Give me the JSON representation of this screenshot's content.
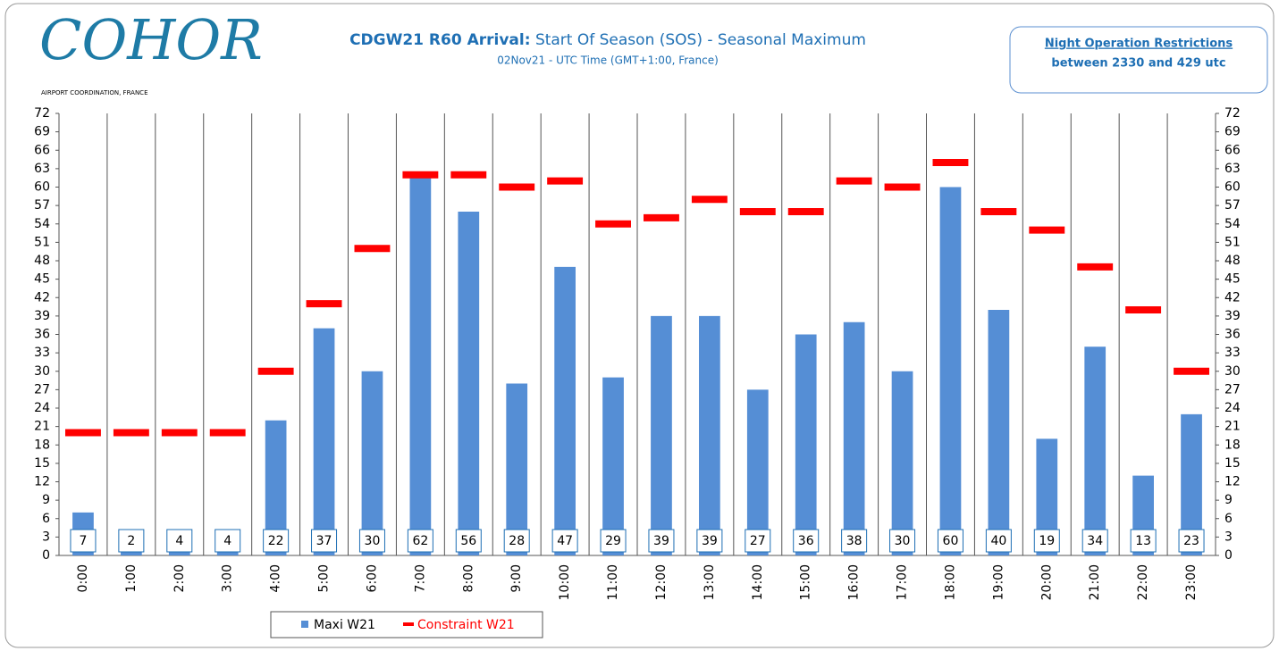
{
  "header": {
    "logo": "COHOR",
    "logo_subtitle": "AIRPORT COORDINATION, FRANCE",
    "note_title": "Night Operation Restrictions",
    "note_text": "between 2330 and 429 utc"
  },
  "chart_data": {
    "type": "bar",
    "title": "CDGW21 R60 Arrival:",
    "title_detail": "Start Of Season (SOS) - Seasonal Maximum",
    "subtitle": "02Nov21 - UTC Time (GMT+1:00, France)",
    "categories": [
      "0:00",
      "1:00",
      "2:00",
      "3:00",
      "4:00",
      "5:00",
      "6:00",
      "7:00",
      "8:00",
      "9:00",
      "10:00",
      "11:00",
      "12:00",
      "13:00",
      "14:00",
      "15:00",
      "16:00",
      "17:00",
      "18:00",
      "19:00",
      "20:00",
      "21:00",
      "22:00",
      "23:00"
    ],
    "series": [
      {
        "name": "Maxi W21",
        "color": "#558ed5",
        "style": "bar",
        "labels": true,
        "values": [
          7,
          2,
          4,
          4,
          22,
          37,
          30,
          62,
          56,
          28,
          47,
          29,
          39,
          39,
          27,
          36,
          38,
          30,
          60,
          40,
          19,
          34,
          13,
          23
        ]
      },
      {
        "name": "Constraint W21",
        "color": "#ff0000",
        "style": "dash",
        "labels": false,
        "values": [
          20,
          20,
          20,
          20,
          30,
          41,
          50,
          62,
          62,
          60,
          61,
          54,
          55,
          58,
          56,
          56,
          61,
          60,
          64,
          56,
          53,
          47,
          40,
          30
        ]
      }
    ],
    "ylim": [
      0,
      72
    ],
    "yticks": [
      0,
      3,
      6,
      9,
      12,
      15,
      18,
      21,
      24,
      27,
      30,
      33,
      36,
      39,
      42,
      45,
      48,
      51,
      54,
      57,
      60,
      63,
      66,
      69,
      72
    ],
    "y2lim": [
      0,
      72
    ],
    "y2ticks": [
      0,
      3,
      6,
      9,
      12,
      15,
      18,
      21,
      24,
      27,
      30,
      33,
      36,
      39,
      42,
      45,
      48,
      51,
      54,
      57,
      60,
      63,
      66,
      69,
      72
    ],
    "grid": "vertical",
    "legend": "bottom"
  }
}
